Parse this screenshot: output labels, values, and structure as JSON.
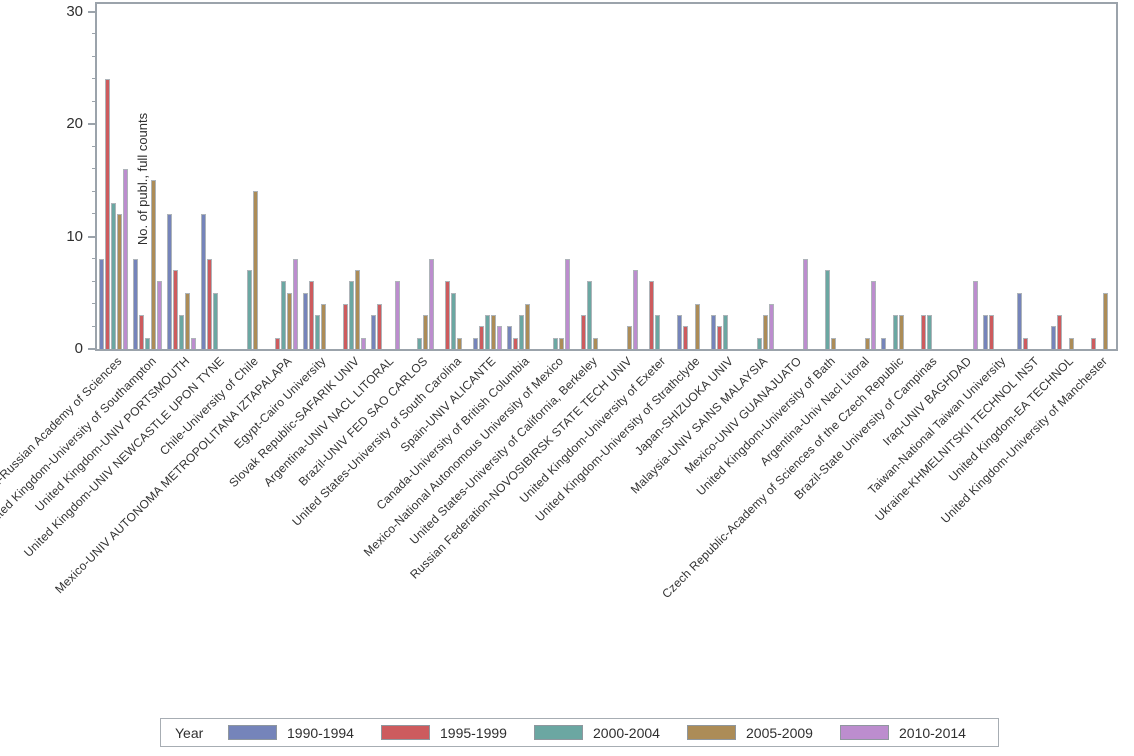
{
  "chart_data": {
    "type": "bar",
    "title": "",
    "xlabel": "",
    "ylabel": "No. of publ., full counts",
    "ylim": [
      0,
      30
    ],
    "yticks_major": [
      0,
      10,
      20,
      30
    ],
    "ytick_minor_step": 2,
    "grid": false,
    "legend": {
      "title": "Year",
      "position": "bottom"
    },
    "frame_color": "#9ba3ab",
    "bar_outline_color": "#aeb4b9",
    "categories": [
      "Russian Federation-Russian Academy of Sciences",
      "United Kingdom-University of Southampton",
      "United Kingdom-UNIV PORTSMOUTH",
      "United Kingdom-UNIV NEWCASTLE UPON TYNE",
      "Chile-University of Chile",
      "Mexico-UNIV AUTONOMA METROPOLITANA IZTAPALAPA",
      "Egypt-Cairo University",
      "Slovak Republic-SAFARIK UNIV",
      "Argentina-UNIV NACL LITORAL",
      "Brazil-UNIV FED SAO CARLOS",
      "United States-University of South Carolina",
      "Spain-UNIV ALICANTE",
      "Canada-University of British Columbia",
      "Mexico-National Autonomous University of Mexico",
      "United States-University of California, Berkeley",
      "Russian Federation-NOVOSIBIRSK STATE TECH UNIV",
      "United Kingdom-University of Exeter",
      "United Kingdom-University of Strathclyde",
      "Japan-SHIZUOKA UNIV",
      "Malaysia-UNIV SAINS MALAYSIA",
      "Mexico-UNIV GUANAJUATO",
      "United Kingdom-University of Bath",
      "Argentina-Univ Nacl Litoral",
      "Czech Republic-Academy of Sciences of the Czech Republic",
      "Brazil-State University of Campinas",
      "Iraq-UNIV BAGHDAD",
      "Taiwan-National Taiwan University",
      "Ukraine-KHMELNITSKII TECHNOL INST",
      "United Kingdom-EA TECHNOL",
      "United Kingdom-University of Manchester"
    ],
    "series": [
      {
        "name": "1990-1994",
        "color": "#7584ba",
        "values": [
          8,
          8,
          12,
          12,
          0,
          0,
          5,
          0,
          3,
          0,
          0,
          1,
          2,
          0,
          0,
          0,
          0,
          3,
          3,
          0,
          0,
          0,
          0,
          1,
          0,
          0,
          3,
          5,
          2,
          0
        ]
      },
      {
        "name": "1995-1999",
        "color": "#cd5b5e",
        "values": [
          24,
          3,
          7,
          8,
          0,
          1,
          6,
          4,
          4,
          0,
          6,
          2,
          1,
          0,
          3,
          0,
          6,
          2,
          2,
          0,
          0,
          0,
          0,
          0,
          3,
          0,
          3,
          1,
          3,
          1
        ]
      },
      {
        "name": "2000-2004",
        "color": "#6ba7a2",
        "values": [
          13,
          1,
          3,
          5,
          7,
          6,
          3,
          6,
          0,
          1,
          5,
          3,
          3,
          1,
          6,
          0,
          3,
          0,
          3,
          1,
          0,
          7,
          0,
          3,
          3,
          0,
          0,
          0,
          0,
          0
        ]
      },
      {
        "name": "2005-2009",
        "color": "#ac8c57",
        "values": [
          12,
          15,
          5,
          0,
          14,
          5,
          4,
          7,
          0,
          3,
          1,
          3,
          4,
          1,
          1,
          2,
          0,
          4,
          0,
          3,
          0,
          1,
          1,
          3,
          0,
          0,
          0,
          0,
          1,
          5
        ]
      },
      {
        "name": "2010-2014",
        "color": "#bc8dce",
        "values": [
          16,
          6,
          1,
          0,
          0,
          8,
          0,
          1,
          6,
          8,
          0,
          2,
          0,
          8,
          0,
          7,
          0,
          0,
          0,
          4,
          8,
          0,
          6,
          0,
          0,
          6,
          0,
          0,
          0,
          0
        ]
      }
    ]
  }
}
